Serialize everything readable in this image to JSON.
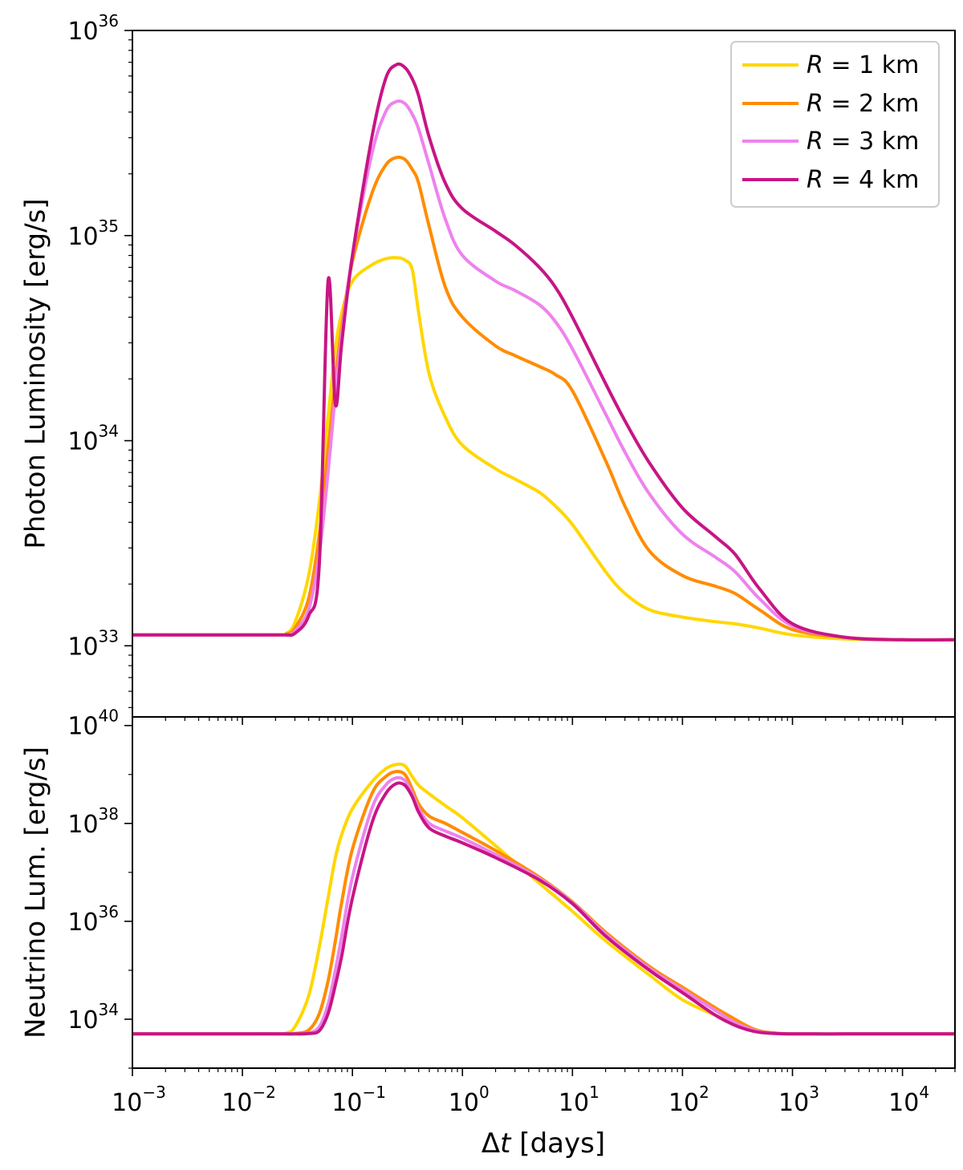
{
  "chart_data": [
    {
      "type": "line",
      "panel": "top",
      "ylabel": "Photon Luminosity [erg/s]",
      "xlabel": "",
      "xscale": "log",
      "yscale": "log",
      "xlim": [
        0.001,
        30000
      ],
      "ylim": [
        4.5e+32,
        1e+36
      ],
      "ytick_labels": [
        {
          "base": "10",
          "exp": "33",
          "value": 1e+33
        },
        {
          "base": "10",
          "exp": "34",
          "value": 1e+34
        },
        {
          "base": "10",
          "exp": "35",
          "value": 1e+35
        },
        {
          "base": "10",
          "exp": "36",
          "value": 1e+36
        }
      ],
      "legend": {
        "placement": "top-right",
        "entries": [
          {
            "sym": "R",
            "eq": " = 1 km",
            "color": "#FFD700"
          },
          {
            "sym": "R",
            "eq": " = 2 km",
            "color": "#FF8C00"
          },
          {
            "sym": "R",
            "eq": " = 3 km",
            "color": "#EE82EE"
          },
          {
            "sym": "R",
            "eq": " = 4 km",
            "color": "#C71585"
          }
        ]
      },
      "series": [
        {
          "name": "R = 1 km",
          "color": "#FFD700",
          "x": [
            0.001,
            0.02,
            0.025,
            0.03,
            0.04,
            0.05,
            0.06,
            0.07,
            0.08,
            0.1,
            0.15,
            0.2,
            0.25,
            0.3,
            0.35,
            0.4,
            0.5,
            0.7,
            1,
            2,
            3,
            5,
            7,
            10,
            20,
            30,
            50,
            100,
            200,
            300,
            500,
            1000,
            3000,
            10000,
            30000
          ],
          "y": [
            1.13e+33,
            1.13e+33,
            1.15e+33,
            1.3e+33,
            2.2e+33,
            5e+33,
            1.3e+34,
            2.8e+34,
            4.2e+34,
            6e+34,
            7.2e+34,
            7.7e+34,
            7.8e+34,
            7.6e+34,
            6.8e+34,
            4.2e+34,
            2.1e+34,
            1.3e+34,
            9.5e+33,
            7.3e+33,
            6.5e+33,
            5.6e+33,
            4.8e+33,
            3.9e+33,
            2.3e+33,
            1.8e+33,
            1.5e+33,
            1.38e+33,
            1.31e+33,
            1.28e+33,
            1.22e+33,
            1.13e+33,
            1.08e+33,
            1.07e+33,
            1.07e+33
          ]
        },
        {
          "name": "R = 2 km",
          "color": "#FF8C00",
          "x": [
            0.001,
            0.02,
            0.025,
            0.03,
            0.04,
            0.05,
            0.06,
            0.07,
            0.08,
            0.1,
            0.15,
            0.2,
            0.25,
            0.3,
            0.35,
            0.4,
            0.5,
            0.7,
            1,
            2,
            3,
            5,
            7,
            10,
            20,
            30,
            50,
            100,
            200,
            300,
            500,
            1000,
            3000,
            10000,
            30000
          ],
          "y": [
            1.13e+33,
            1.13e+33,
            1.14e+33,
            1.22e+33,
            1.7e+33,
            3.5e+33,
            9e+33,
            2e+34,
            3.6e+34,
            7.5e+34,
            1.6e+35,
            2.2e+35,
            2.4e+35,
            2.35e+35,
            2.1e+35,
            1.8e+35,
            1.1e+35,
            5.6e+34,
            4e+34,
            2.9e+34,
            2.6e+34,
            2.3e+34,
            2.1e+34,
            1.75e+34,
            8e+33,
            4.8e+33,
            2.9e+33,
            2.2e+33,
            1.95e+33,
            1.8e+33,
            1.5e+33,
            1.2e+33,
            1.1e+33,
            1.07e+33,
            1.07e+33
          ]
        },
        {
          "name": "R = 3 km",
          "color": "#EE82EE",
          "x": [
            0.001,
            0.02,
            0.025,
            0.03,
            0.04,
            0.05,
            0.06,
            0.07,
            0.08,
            0.1,
            0.15,
            0.2,
            0.25,
            0.3,
            0.35,
            0.4,
            0.5,
            0.7,
            1,
            2,
            3,
            5,
            7,
            10,
            20,
            30,
            50,
            100,
            200,
            300,
            500,
            1000,
            3000,
            10000,
            30000
          ],
          "y": [
            1.13e+33,
            1.13e+33,
            1.13e+33,
            1.18e+33,
            1.5e+33,
            2.8e+33,
            7e+33,
            1.7e+34,
            3.3e+34,
            8e+34,
            2.5e+35,
            4e+35,
            4.5e+35,
            4.4e+35,
            3.9e+35,
            3.3e+35,
            2.2e+35,
            1.2e+35,
            8e+34,
            6e+34,
            5.4e+34,
            4.6e+34,
            3.8e+34,
            2.8e+34,
            1.35e+34,
            8.8e+33,
            5.5e+33,
            3.5e+33,
            2.7e+33,
            2.3e+33,
            1.7e+33,
            1.25e+33,
            1.1e+33,
            1.07e+33,
            1.07e+33
          ]
        },
        {
          "name": "R = 4 km",
          "color": "#C71585",
          "x": [
            0.001,
            0.02,
            0.025,
            0.03,
            0.04,
            0.05,
            0.06,
            0.07,
            0.08,
            0.1,
            0.15,
            0.2,
            0.25,
            0.3,
            0.35,
            0.4,
            0.5,
            0.7,
            1,
            2,
            3,
            5,
            7,
            10,
            20,
            30,
            50,
            100,
            200,
            300,
            500,
            1000,
            3000,
            10000,
            30000
          ],
          "y": [
            1.13e+33,
            1.13e+33,
            1.13e+33,
            1.15e+33,
            1.4e+33,
            2.5e+33,
            6e+34,
            1.5e+34,
            3e+34,
            8e+34,
            3e+35,
            5.8e+35,
            6.8e+35,
            6.6e+35,
            5.8e+35,
            4.8e+35,
            3e+35,
            1.8e+35,
            1.35e+35,
            1.05e+35,
            9e+34,
            7e+34,
            5.6e+34,
            4e+34,
            1.9e+34,
            1.25e+34,
            7.8e+33,
            4.7e+33,
            3.4e+33,
            2.8e+33,
            1.9e+33,
            1.28e+33,
            1.1e+33,
            1.07e+33,
            1.07e+33
          ]
        }
      ]
    },
    {
      "type": "line",
      "panel": "bottom",
      "ylabel": "Neutrino Lum. [erg/s]",
      "xlabel": "Δt [days]",
      "xlabel_parts": {
        "prefix": "Δ",
        "var": "t",
        "suffix": " [days]"
      },
      "xscale": "log",
      "yscale": "log",
      "xlim": [
        0.001,
        30000
      ],
      "ylim": [
        1e+33,
        1.5e+40
      ],
      "ytick_labels": [
        {
          "base": "10",
          "exp": "34",
          "value": 1e+34
        },
        {
          "base": "10",
          "exp": "36",
          "value": 1e+36
        },
        {
          "base": "10",
          "exp": "38",
          "value": 1e+38
        },
        {
          "base": "10",
          "exp": "40",
          "value": 1e+40
        }
      ],
      "xtick_labels": [
        {
          "base": "10",
          "exp": "−3",
          "value": 0.001
        },
        {
          "base": "10",
          "exp": "−2",
          "value": 0.01
        },
        {
          "base": "10",
          "exp": "−1",
          "value": 0.1
        },
        {
          "base": "10",
          "exp": "0",
          "value": 1
        },
        {
          "base": "10",
          "exp": "1",
          "value": 10
        },
        {
          "base": "10",
          "exp": "2",
          "value": 100
        },
        {
          "base": "10",
          "exp": "3",
          "value": 1000
        },
        {
          "base": "10",
          "exp": "4",
          "value": 10000
        }
      ],
      "series": [
        {
          "name": "R = 1 km",
          "color": "#FFD700",
          "x": [
            0.001,
            0.02,
            0.025,
            0.03,
            0.04,
            0.05,
            0.06,
            0.07,
            0.08,
            0.1,
            0.15,
            0.2,
            0.25,
            0.3,
            0.35,
            0.4,
            0.5,
            0.7,
            1,
            2,
            5,
            10,
            20,
            50,
            100,
            200,
            300,
            400,
            500,
            700,
            1000,
            3000,
            10000,
            30000
          ],
          "y": [
            5e+33,
            5e+33,
            5.2e+33,
            7e+33,
            3e+34,
            3e+35,
            3e+36,
            2e+37,
            6e+37,
            2e+38,
            7e+38,
            1.3e+39,
            1.6e+39,
            1.5e+39,
            9e+38,
            6e+38,
            4e+38,
            2.3e+38,
            1.3e+38,
            3.5e+37,
            6e+36,
            1.6e+36,
            4e+35,
            8e+34,
            2.5e+34,
            1.2e+34,
            8e+33,
            6.2e+33,
            5.5e+33,
            5.1e+33,
            5e+33,
            5e+33,
            5e+33,
            5e+33
          ]
        },
        {
          "name": "R = 2 km",
          "color": "#FF8C00",
          "x": [
            0.001,
            0.02,
            0.025,
            0.03,
            0.04,
            0.05,
            0.06,
            0.07,
            0.08,
            0.1,
            0.15,
            0.2,
            0.25,
            0.3,
            0.35,
            0.4,
            0.5,
            0.7,
            1,
            2,
            5,
            10,
            20,
            50,
            100,
            200,
            300,
            400,
            500,
            700,
            1000,
            3000,
            10000,
            30000
          ],
          "y": [
            5e+33,
            5e+33,
            5e+33,
            5.1e+33,
            6e+33,
            1.3e+34,
            6e+34,
            4e+35,
            2.5e+36,
            3e+37,
            4e+38,
            9e+38,
            1.15e+39,
            1e+39,
            5e+38,
            2.5e+38,
            1.4e+38,
            1e+38,
            6.5e+37,
            2.8e+37,
            8e+36,
            2.5e+36,
            6e+35,
            1.2e+35,
            4.5e+34,
            1.7e+34,
            1e+34,
            7e+33,
            5.8e+33,
            5.2e+33,
            5e+33,
            5e+33,
            5e+33,
            5e+33
          ]
        },
        {
          "name": "R = 3 km",
          "color": "#EE82EE",
          "x": [
            0.001,
            0.02,
            0.025,
            0.03,
            0.04,
            0.05,
            0.06,
            0.07,
            0.08,
            0.1,
            0.15,
            0.2,
            0.25,
            0.3,
            0.35,
            0.4,
            0.5,
            0.7,
            1,
            2,
            5,
            10,
            20,
            50,
            100,
            200,
            300,
            400,
            500,
            700,
            1000,
            3000,
            10000,
            30000
          ],
          "y": [
            5e+33,
            5e+33,
            5e+33,
            5e+33,
            5.2e+33,
            7e+33,
            2e+34,
            1e+35,
            5e+35,
            8e+36,
            2e+38,
            6e+38,
            8.5e+38,
            7.5e+38,
            4e+38,
            2e+38,
            1e+38,
            7e+37,
            5e+37,
            2.3e+37,
            7.5e+36,
            2.4e+36,
            5.5e+35,
            1.1e+35,
            4e+34,
            1.5e+34,
            8.5e+33,
            6.5e+33,
            5.6e+33,
            5.1e+33,
            5e+33,
            5e+33,
            5e+33,
            5e+33
          ]
        },
        {
          "name": "R = 4 km",
          "color": "#C71585",
          "x": [
            0.001,
            0.02,
            0.025,
            0.03,
            0.04,
            0.05,
            0.06,
            0.07,
            0.08,
            0.1,
            0.15,
            0.2,
            0.25,
            0.3,
            0.35,
            0.4,
            0.5,
            0.7,
            1,
            2,
            5,
            10,
            20,
            50,
            100,
            200,
            300,
            400,
            500,
            700,
            1000,
            3000,
            10000,
            30000
          ],
          "y": [
            5e+33,
            5e+33,
            5e+33,
            5e+33,
            5.1e+33,
            5.8e+33,
            1.3e+34,
            5e+34,
            2e+35,
            3e+36,
            1e+38,
            4e+38,
            6.5e+38,
            6e+38,
            3.5e+38,
            1.7e+38,
            8e+37,
            5.5e+37,
            4e+37,
            2e+37,
            7e+36,
            2.3e+36,
            5e+35,
            1e+35,
            3.5e+34,
            1.2e+34,
            7.5e+33,
            6e+33,
            5.4e+33,
            5.1e+33,
            5e+33,
            5e+33,
            5e+33,
            5e+33
          ]
        }
      ]
    }
  ]
}
